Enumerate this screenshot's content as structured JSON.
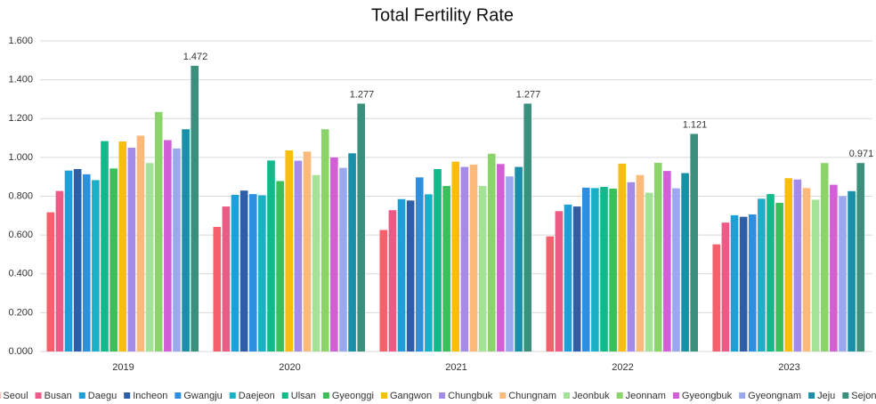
{
  "chart_data": {
    "type": "bar",
    "title": "Total Fertility Rate",
    "categories": [
      "2019",
      "2020",
      "2021",
      "2022",
      "2023"
    ],
    "ylim": [
      0,
      1.6
    ],
    "yticks": [
      {
        "value": 0,
        "label": "0.000"
      },
      {
        "value": 0.2,
        "label": "0.200"
      },
      {
        "value": 0.4,
        "label": "0.400"
      },
      {
        "value": 0.6,
        "label": "0.600"
      },
      {
        "value": 0.8,
        "label": "0.800"
      },
      {
        "value": 1.0,
        "label": "1.000"
      },
      {
        "value": 1.2,
        "label": "1.200"
      },
      {
        "value": 1.4,
        "label": "1.400"
      },
      {
        "value": 1.6,
        "label": "1.600"
      }
    ],
    "grid": true,
    "legend": "bottom",
    "series": [
      {
        "name": "Seoul",
        "color": "#f4606c",
        "values": [
          0.717,
          0.642,
          0.626,
          0.593,
          0.552
        ]
      },
      {
        "name": "Busan",
        "color": "#ec5a86",
        "values": [
          0.827,
          0.747,
          0.728,
          0.723,
          0.664
        ]
      },
      {
        "name": "Daegu",
        "color": "#1e9fd8",
        "values": [
          0.932,
          0.807,
          0.785,
          0.757,
          0.702
        ]
      },
      {
        "name": "Incheon",
        "color": "#2f5ea8",
        "values": [
          0.94,
          0.829,
          0.778,
          0.747,
          0.694
        ]
      },
      {
        "name": "Gwangju",
        "color": "#2e8fe0",
        "values": [
          0.913,
          0.811,
          0.897,
          0.844,
          0.706
        ]
      },
      {
        "name": "Daejeon",
        "color": "#1ab0c8",
        "values": [
          0.883,
          0.805,
          0.81,
          0.842,
          0.787
        ]
      },
      {
        "name": "Ulsan",
        "color": "#12b98a",
        "values": [
          1.084,
          0.984,
          0.94,
          0.848,
          0.811
        ]
      },
      {
        "name": "Gyeonggi",
        "color": "#3cbf5a",
        "values": [
          0.943,
          0.878,
          0.853,
          0.839,
          0.766
        ]
      },
      {
        "name": "Gangwon",
        "color": "#f9be0c",
        "values": [
          1.082,
          1.036,
          0.978,
          0.968,
          0.893
        ]
      },
      {
        "name": "Chungbuk",
        "color": "#a48be8",
        "values": [
          1.05,
          0.983,
          0.951,
          0.872,
          0.886
        ]
      },
      {
        "name": "Chungnam",
        "color": "#fbb97a",
        "values": [
          1.112,
          1.03,
          0.963,
          0.909,
          0.842
        ]
      },
      {
        "name": "Jeonbuk",
        "color": "#a4e295",
        "values": [
          0.971,
          0.909,
          0.853,
          0.818,
          0.782
        ]
      },
      {
        "name": "Jeonnam",
        "color": "#8bd46a",
        "values": [
          1.234,
          1.145,
          1.019,
          0.972,
          0.971
        ]
      },
      {
        "name": "Gyeongbuk",
        "color": "#d35fd6",
        "values": [
          1.089,
          1.0,
          0.966,
          0.93,
          0.859
        ]
      },
      {
        "name": "Gyeongnam",
        "color": "#9aa8f0",
        "values": [
          1.046,
          0.946,
          0.902,
          0.841,
          0.8
        ]
      },
      {
        "name": "Jeju",
        "color": "#1a8fa8",
        "values": [
          1.145,
          1.021,
          0.951,
          0.919,
          0.826
        ]
      },
      {
        "name": "Sejong",
        "color": "#3a8f7d",
        "values": [
          1.472,
          1.277,
          1.277,
          1.121,
          0.971
        ],
        "show_value_labels": true
      }
    ]
  }
}
